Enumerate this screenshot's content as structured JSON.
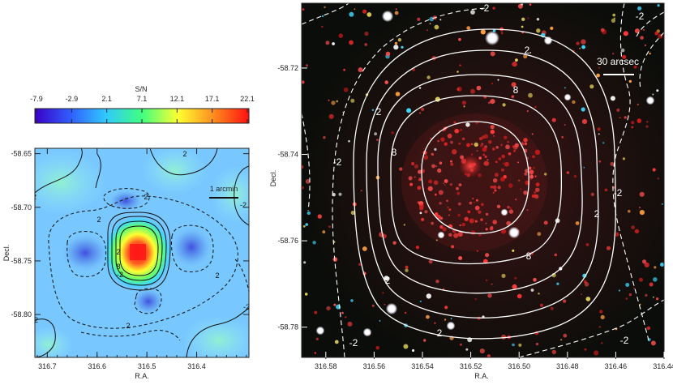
{
  "colorbar": {
    "title": "S/N",
    "ticks": [
      "-7.9",
      "-2.9",
      "2.1",
      "7.1",
      "12.1",
      "17.1",
      "22.1"
    ],
    "colors": [
      "#3a00c8",
      "#3060ff",
      "#30c8ff",
      "#40ff80",
      "#ffff30",
      "#ff9020",
      "#ff1010"
    ]
  },
  "left_panel": {
    "xlabel": "R.A.",
    "ylabel": "Decl.",
    "xticks": [
      "316.7",
      "316.6",
      "316.5",
      "316.4"
    ],
    "yticks": [
      "-58.65",
      "-58.70",
      "-58.75",
      "-58.80"
    ],
    "scalebar_label": "1 arcmin",
    "contour_labels": [
      "2",
      "-2",
      "2",
      "2",
      "8",
      "-2",
      "2",
      "-2",
      "2",
      "-2",
      "2",
      "-2"
    ]
  },
  "right_panel": {
    "xlabel": "R.A.",
    "ylabel": "Decl.",
    "xticks": [
      "316.58",
      "316.56",
      "316.54",
      "316.52",
      "316.50",
      "316.48",
      "316.46",
      "316.44"
    ],
    "yticks": [
      "-58.72",
      "-58.74",
      "-58.76",
      "-58.78"
    ],
    "scalebar_label": "30 arcsec",
    "contour_labels": [
      "-2",
      "-2",
      "2",
      "8",
      "2",
      "8",
      "2",
      "8",
      "2",
      "-2",
      "2",
      "-2",
      "-2",
      "-2"
    ]
  },
  "chart_data": [
    {
      "type": "heatmap",
      "title": "",
      "xlabel": "R.A.",
      "ylabel": "Decl.",
      "xlim": [
        316.725,
        316.295
      ],
      "ylim": [
        -58.84,
        -58.645
      ],
      "colorbar_label": "S/N",
      "colorbar_range": [
        -7.9,
        22.1
      ],
      "contour_levels": [
        -2,
        2,
        8
      ],
      "peak": {
        "ra": 316.52,
        "dec": -58.745,
        "sn": 22.1
      },
      "minima": [
        {
          "ra": 316.625,
          "dec": -58.745
        },
        {
          "ra": 316.418,
          "dec": -58.742
        },
        {
          "ra": 316.497,
          "dec": -58.79
        }
      ]
    },
    {
      "type": "scatter",
      "title": "",
      "xlabel": "R.A.",
      "ylabel": "Decl.",
      "xlim": [
        316.59,
        316.44
      ],
      "ylim": [
        -58.787,
        -58.705
      ],
      "contour_levels": [
        -2,
        2,
        8
      ],
      "scalebar": "30 arcsec"
    }
  ]
}
